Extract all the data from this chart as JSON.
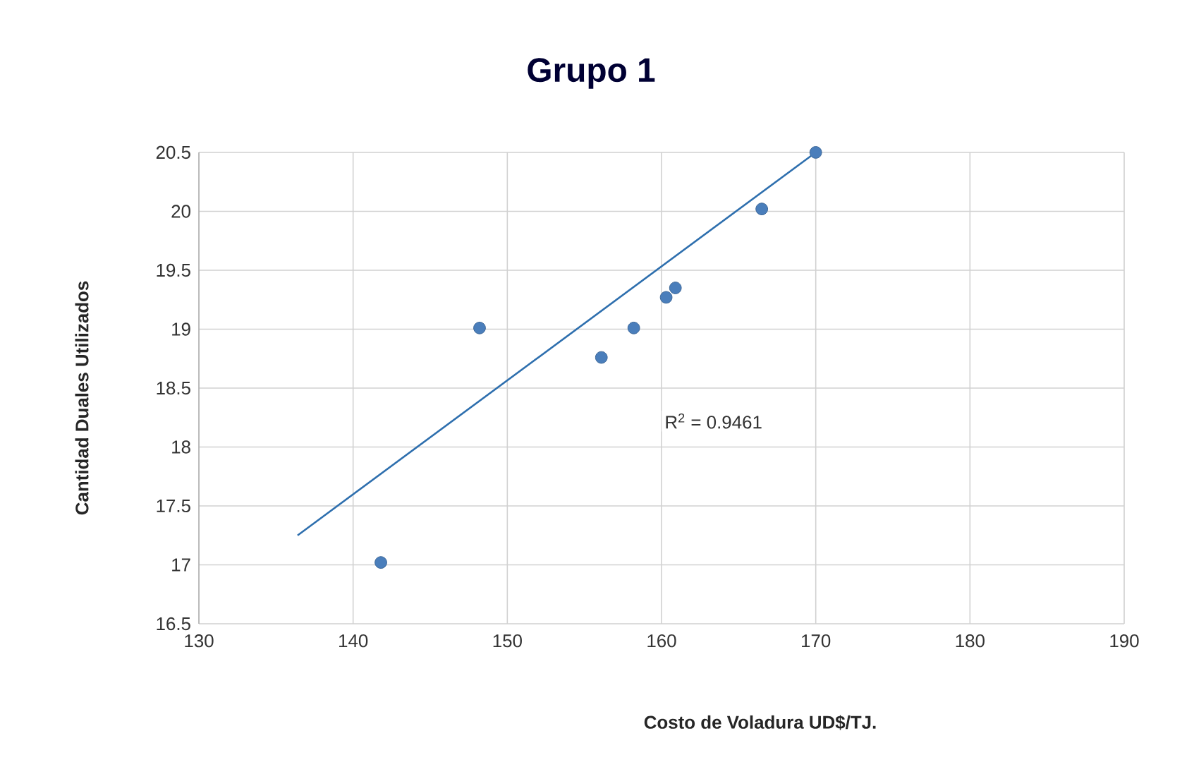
{
  "chart_data": {
    "type": "scatter",
    "title": "Grupo 1",
    "xlabel": "Costo de Voladura UD$/TJ.",
    "ylabel": "Cantidad Duales Utilizados",
    "annotations": [
      "R$^{2}$ = 0.9461"
    ],
    "series": [
      {
        "color": "#4a7ebb",
        "x": [
          141.8,
          148.2,
          156.1,
          158.2,
          160.3,
          160.9,
          166.5,
          170.0
        ],
        "values": [
          17.02,
          19.01,
          18.76,
          19.01,
          19.27,
          19.35,
          20.02,
          20.5
        ],
        "marker": "circle"
      },
      {
        "type": "line",
        "color": "#2e6fae",
        "x": [
          136.4,
          170.0
        ],
        "values": [
          17.25,
          20.5
        ],
        "marker": "none",
        "line_style": "solid"
      }
    ],
    "xlim": [
      130,
      190
    ],
    "xticks": [
      130,
      140,
      150,
      160,
      170,
      180,
      190
    ],
    "ylim": [
      16.5,
      20.5
    ],
    "yticks": [
      16.5,
      17,
      17.5,
      18,
      18.5,
      19,
      19.5,
      20,
      20.5
    ],
    "grid": true
  }
}
